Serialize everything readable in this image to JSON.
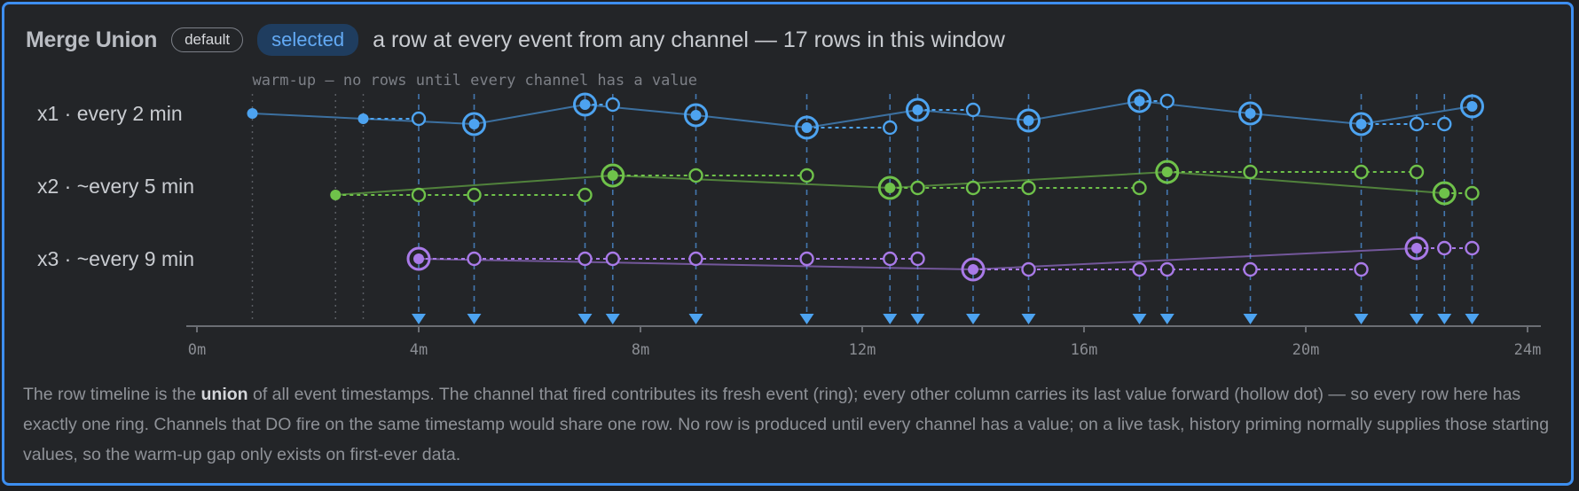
{
  "header": {
    "title": "Merge Union",
    "chip_default": "default",
    "chip_selected": "selected",
    "subtitle": "a row at every event from any channel — 17 rows in this window"
  },
  "warmup_label": "warm-up — no rows until every channel has a value",
  "axis": {
    "ticks": [
      "0m",
      "4m",
      "8m",
      "12m",
      "16m",
      "20m",
      "24m"
    ]
  },
  "colors": {
    "x1": "#4da3f0",
    "x2": "#6fc24a",
    "x3": "#a97ae8",
    "grid": "#4a86c8",
    "border": "#3d8ef0"
  },
  "chart_data": {
    "type": "timeline",
    "x_unit": "minutes",
    "x_range": [
      0,
      24
    ],
    "warmup_times": [
      1,
      2.5,
      3
    ],
    "row_times": [
      4,
      5,
      7,
      7.5,
      9,
      11,
      12.5,
      13,
      14,
      15,
      17,
      17.5,
      19,
      21,
      22,
      22.5,
      23
    ],
    "channels": [
      {
        "label": "x1 · every 2 min",
        "key": "x1",
        "fresh": [
          [
            1,
            0.5
          ],
          [
            3,
            0.35
          ],
          [
            5,
            0.2
          ],
          [
            7,
            0.75
          ],
          [
            9,
            0.45
          ],
          [
            11,
            0.1
          ],
          [
            13,
            0.6
          ],
          [
            15,
            0.3
          ],
          [
            17,
            0.85
          ],
          [
            19,
            0.5
          ],
          [
            21,
            0.2
          ],
          [
            23,
            0.7
          ]
        ]
      },
      {
        "label": "x2 · ~every 5 min",
        "key": "x2",
        "fresh": [
          [
            2.5,
            0.25
          ],
          [
            7.5,
            0.8
          ],
          [
            12.5,
            0.45
          ],
          [
            17.5,
            0.9
          ],
          [
            22.5,
            0.3
          ]
        ]
      },
      {
        "label": "x3 · ~every 9 min",
        "key": "x3",
        "fresh": [
          [
            4,
            0.5
          ],
          [
            14,
            0.2
          ],
          [
            22,
            0.8
          ]
        ]
      }
    ],
    "description_parts": [
      "The row timeline is the ",
      "union",
      " of all event timestamps. The channel that fired contributes its fresh event (ring); every other column carries its last value forward (hollow dot) — so every row here has exactly one ring. Channels that DO fire on the same timestamp would share one row. No row is produced until every channel has a value; on a live task, history priming normally supplies those starting values, so the warm-up gap only exists on first-ever data."
    ]
  }
}
